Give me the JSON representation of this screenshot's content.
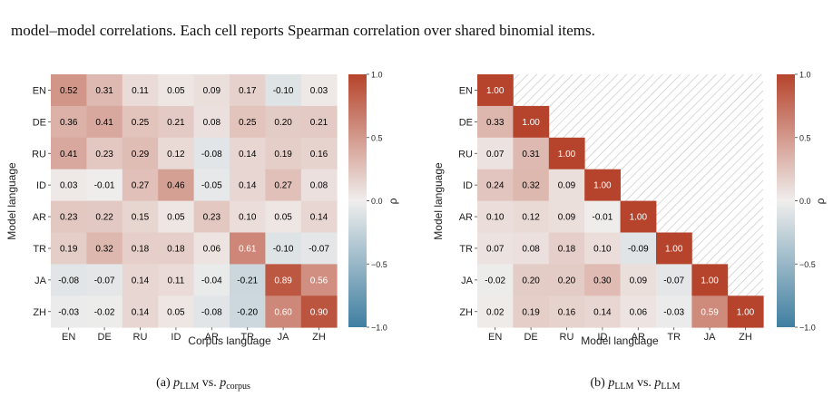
{
  "intro_text": "model–model correlations. Each cell reports Spearman correlation over shared binomial items.",
  "colors": {
    "negative": "#3f7fa1",
    "neutral": "#f0eeed",
    "positive": "#b6442c",
    "masked_hatch": "#c8c8c8"
  },
  "chart_data": [
    {
      "type": "heatmap",
      "caption": {
        "prefix": "(a) ",
        "left_var": "p",
        "left_sub": "LLM",
        "vs": " vs. ",
        "right_var": "p",
        "right_sub": "corpus"
      },
      "xlabel": "Corpus language",
      "ylabel": "Model language",
      "x_categories": [
        "EN",
        "DE",
        "RU",
        "ID",
        "AR",
        "TR",
        "JA",
        "ZH"
      ],
      "y_categories": [
        "EN",
        "DE",
        "RU",
        "ID",
        "AR",
        "TR",
        "JA",
        "ZH"
      ],
      "values": [
        [
          0.52,
          0.31,
          0.11,
          0.05,
          0.09,
          0.17,
          -0.1,
          0.03
        ],
        [
          0.36,
          0.41,
          0.25,
          0.21,
          0.08,
          0.25,
          0.2,
          0.21
        ],
        [
          0.41,
          0.23,
          0.29,
          0.12,
          -0.08,
          0.14,
          0.19,
          0.16
        ],
        [
          0.03,
          -0.01,
          0.27,
          0.46,
          -0.05,
          0.14,
          0.27,
          0.08
        ],
        [
          0.23,
          0.22,
          0.15,
          0.05,
          0.23,
          0.1,
          0.05,
          0.14
        ],
        [
          0.19,
          0.32,
          0.18,
          0.18,
          0.06,
          0.61,
          -0.1,
          -0.07
        ],
        [
          -0.08,
          -0.07,
          0.14,
          0.11,
          -0.04,
          -0.21,
          0.89,
          0.56
        ],
        [
          -0.03,
          -0.02,
          0.14,
          0.05,
          -0.08,
          -0.2,
          0.6,
          0.9
        ]
      ],
      "color_range": [
        -1.0,
        1.0
      ],
      "colorbar": {
        "label": "ρ",
        "ticks": [
          1.0,
          0.5,
          0.0,
          -0.5,
          -1.0
        ],
        "tick_labels": [
          "1.0",
          "0.5",
          "0.0",
          "−0.5",
          "−1.0"
        ]
      }
    },
    {
      "type": "heatmap",
      "caption": {
        "prefix": "(b) ",
        "left_var": "p",
        "left_sub": "LLM",
        "vs": " vs. ",
        "right_var": "p",
        "right_sub": "LLM"
      },
      "xlabel": "Model language",
      "ylabel": "Model language",
      "x_categories": [
        "EN",
        "DE",
        "RU",
        "ID",
        "AR",
        "TR",
        "JA",
        "ZH"
      ],
      "y_categories": [
        "EN",
        "DE",
        "RU",
        "ID",
        "AR",
        "TR",
        "JA",
        "ZH"
      ],
      "mask": "upper-triangle-hatched",
      "values": [
        [
          1.0,
          null,
          null,
          null,
          null,
          null,
          null,
          null
        ],
        [
          0.33,
          1.0,
          null,
          null,
          null,
          null,
          null,
          null
        ],
        [
          0.07,
          0.31,
          1.0,
          null,
          null,
          null,
          null,
          null
        ],
        [
          0.24,
          0.32,
          0.09,
          1.0,
          null,
          null,
          null,
          null
        ],
        [
          0.1,
          0.12,
          0.09,
          -0.01,
          1.0,
          null,
          null,
          null
        ],
        [
          0.07,
          0.08,
          0.18,
          0.1,
          -0.09,
          1.0,
          null,
          null
        ],
        [
          -0.02,
          0.2,
          0.2,
          0.3,
          0.09,
          -0.07,
          1.0,
          null
        ],
        [
          0.02,
          0.19,
          0.16,
          0.14,
          0.06,
          -0.03,
          0.59,
          1.0
        ]
      ],
      "color_range": [
        -1.0,
        1.0
      ],
      "colorbar": {
        "label": "ρ",
        "ticks": [
          1.0,
          0.5,
          0.0,
          -0.5,
          -1.0
        ],
        "tick_labels": [
          "1.0",
          "0.5",
          "0.0",
          "−0.5",
          "−1.0"
        ]
      }
    }
  ]
}
